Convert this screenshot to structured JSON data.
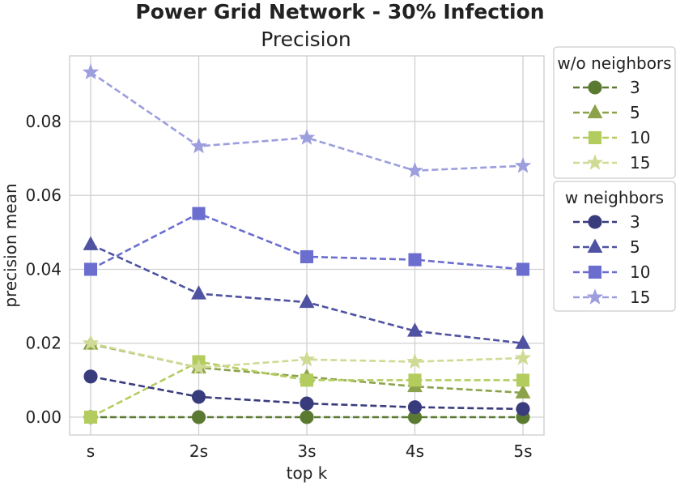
{
  "chart_data": {
    "type": "line",
    "title": "Power Grid Network - 30% Infection",
    "subtitle": "Precision",
    "xlabel": "top k",
    "ylabel": "precision mean",
    "categories": [
      "s",
      "2s",
      "3s",
      "4s",
      "5s"
    ],
    "ylim": [
      -0.005,
      0.098
    ],
    "yticks": [
      "0.00",
      "0.02",
      "0.04",
      "0.06",
      "0.08"
    ],
    "grid": true,
    "legend_placement": "outside right",
    "legend_groups": [
      {
        "title": "w/o neighbors",
        "series": [
          {
            "name": "3",
            "color": "#5a7a32",
            "marker": "circle",
            "values": [
              0.0,
              0.0,
              0.0,
              0.0,
              0.0
            ]
          },
          {
            "name": "5",
            "color": "#8ba24a",
            "marker": "triangle",
            "values": [
              0.0198,
              0.0134,
              0.0109,
              0.0083,
              0.0066
            ]
          },
          {
            "name": "10",
            "color": "#b3cc5e",
            "marker": "square",
            "values": [
              0.0,
              0.015,
              0.01,
              0.01,
              0.01
            ]
          },
          {
            "name": "15",
            "color": "#cfdb94",
            "marker": "star",
            "values": [
              0.02,
              0.0134,
              0.0156,
              0.015,
              0.016
            ]
          }
        ]
      },
      {
        "title": "w neighbors",
        "series": [
          {
            "name": "3",
            "color": "#393c7c",
            "marker": "circle",
            "values": [
              0.011,
              0.0055,
              0.0037,
              0.0027,
              0.0022
            ]
          },
          {
            "name": "5",
            "color": "#4f52a0",
            "marker": "triangle",
            "values": [
              0.0467,
              0.0334,
              0.0311,
              0.0233,
              0.02
            ]
          },
          {
            "name": "10",
            "color": "#6b6ecf",
            "marker": "square",
            "values": [
              0.04,
              0.0551,
              0.0434,
              0.0426,
              0.04
            ]
          },
          {
            "name": "15",
            "color": "#9c9ede",
            "marker": "star",
            "values": [
              0.0933,
              0.0733,
              0.0756,
              0.0667,
              0.068
            ]
          }
        ]
      }
    ]
  }
}
